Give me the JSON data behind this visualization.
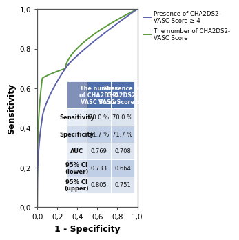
{
  "title": "",
  "xlabel": "1 - Specificity",
  "ylabel": "Sensitivity",
  "xlim": [
    0.0,
    1.0
  ],
  "ylim": [
    0.0,
    1.0
  ],
  "xticks": [
    0.0,
    0.2,
    0.4,
    0.6,
    0.8,
    1.0
  ],
  "yticks": [
    0.0,
    0.2,
    0.4,
    0.6,
    0.8,
    1.0
  ],
  "xtick_labels": [
    "0,0",
    "0,2",
    "0,4",
    "0,6",
    "0,8",
    "1,0"
  ],
  "ytick_labels": [
    "0,0",
    "0,2",
    "0,4",
    "0,6",
    "0,8",
    "1,0"
  ],
  "color_blue": "#5a5fa8",
  "color_green": "#5a9a3a",
  "legend_label_blue": "Presence of CHA2DS2-\nVASC Score ≥ 4",
  "legend_label_green": "The number of CHA2DS2-\nVASC Score",
  "table_header_color": "#4f6faa",
  "table_row_light": "#dce4f0",
  "table_row_dark": "#c0cfe6",
  "table_first_col_light": "#e8eef7",
  "table_first_col_dark": "#d0dcee",
  "table_header_text": [
    "The number\nof CHA2DS2-\nVASC Score",
    "Presence of\nCHA2DS2-\nVASC Score ≥ 4"
  ],
  "table_rows": [
    [
      "Sensitivity",
      "70.0 %",
      "70.0 %"
    ],
    [
      "Specificity",
      "71.7 %",
      "71.7 %"
    ],
    [
      "AUC",
      "0.769",
      "0.708"
    ],
    [
      "95% CI\n(lower)",
      "0.733",
      "0.664"
    ],
    [
      "95% CI\n(upper)",
      "0.805",
      "0.751"
    ]
  ],
  "bg_color": "#ffffff",
  "plot_bg": "#ffffff"
}
